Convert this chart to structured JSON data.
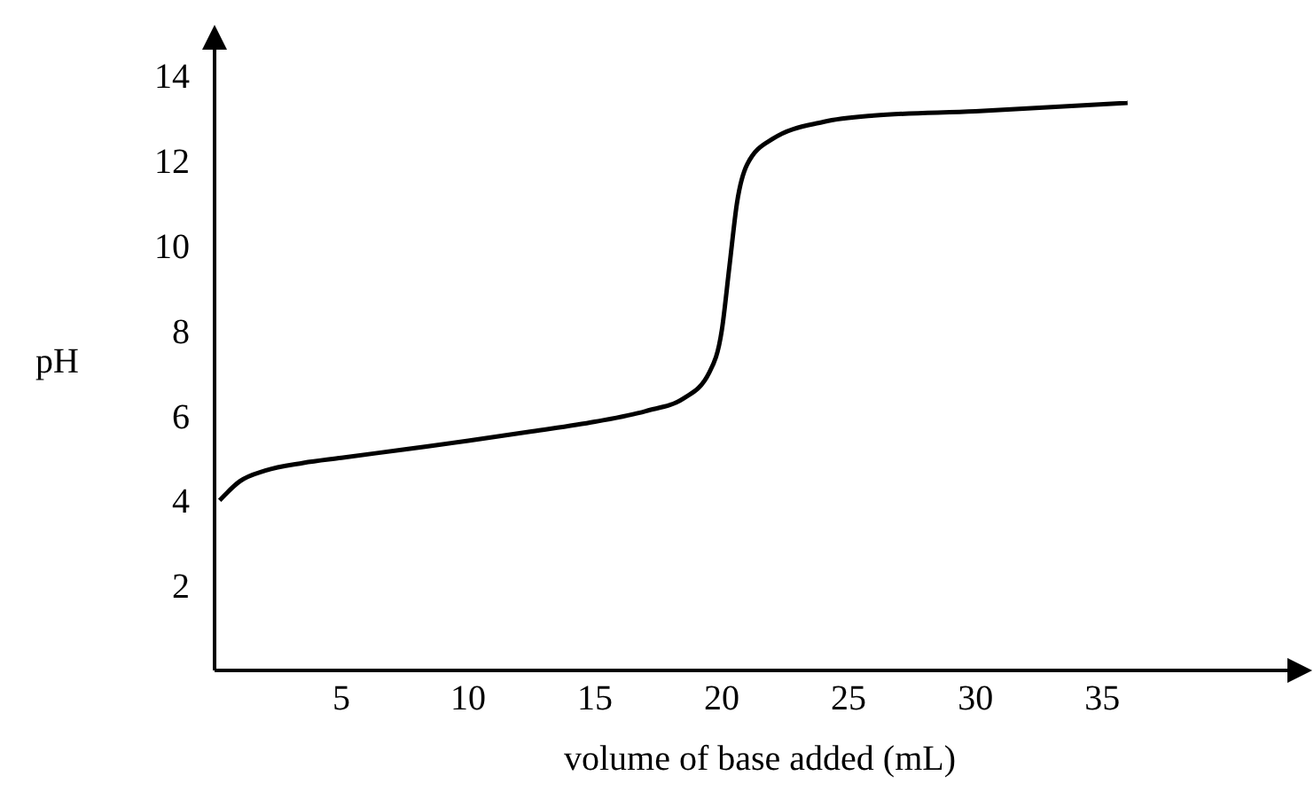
{
  "chart_data": {
    "type": "line",
    "xlabel": "volume of base added (mL)",
    "ylabel": "pH",
    "x": [
      0.2,
      1,
      2,
      3.5,
      5,
      7.5,
      10,
      12.5,
      15,
      17,
      18.5,
      19.5,
      20,
      20.3,
      20.6,
      21,
      22,
      24,
      26,
      30,
      36
    ],
    "series": [
      {
        "color": "#000000",
        "values": [
          4,
          4.45,
          4.7,
          4.88,
          5,
          5.2,
          5.4,
          5.62,
          5.85,
          6.1,
          6.4,
          7,
          8,
          9.5,
          11,
          11.9,
          12.5,
          12.9,
          13.05,
          13.15,
          13.35
        ]
      }
    ],
    "xlim": [
      0,
      43
    ],
    "ylim": [
      0,
      14.6
    ],
    "xticks": [
      5,
      10,
      15,
      20,
      25,
      30,
      35
    ],
    "yticks": [
      2,
      4,
      6,
      8,
      10,
      12,
      14
    ],
    "grid": false,
    "legend": false,
    "marker": "none",
    "line_style": "solid"
  }
}
